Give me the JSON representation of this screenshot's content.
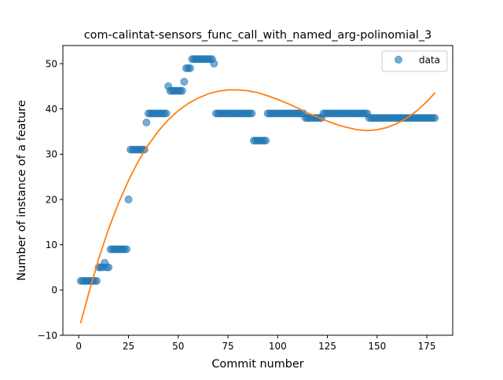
{
  "chart_data": {
    "type": "scatter",
    "title": "com-calintat-sensors_func_call_with_named_arg-polinomial_3",
    "xlabel": "Commit number",
    "ylabel": "Number of instance of a feature",
    "xlim": [
      -8,
      188
    ],
    "ylim": [
      -10,
      54
    ],
    "xticks": [
      0,
      25,
      50,
      75,
      100,
      125,
      150,
      175
    ],
    "yticks": [
      -10,
      0,
      10,
      20,
      30,
      40,
      50
    ],
    "grid": false,
    "legend": {
      "location": "upper right",
      "entries": [
        "data"
      ]
    },
    "colors": {
      "scatter": "#1f77b4",
      "fit": "#ff7f0e"
    },
    "series": [
      {
        "name": "data",
        "kind": "scatter",
        "x": [
          1,
          2,
          3,
          4,
          5,
          6,
          7,
          8,
          9,
          10,
          11,
          12,
          13,
          14,
          15,
          16,
          17,
          18,
          19,
          20,
          21,
          22,
          23,
          24,
          25,
          26,
          27,
          28,
          29,
          30,
          31,
          32,
          33,
          34,
          35,
          36,
          37,
          38,
          39,
          40,
          41,
          42,
          43,
          44,
          45,
          46,
          47,
          48,
          49,
          50,
          51,
          52,
          53,
          54,
          55,
          56,
          57,
          58,
          59,
          60,
          61,
          62,
          63,
          64,
          65,
          66,
          67,
          68,
          69,
          70,
          71,
          72,
          73,
          74,
          75,
          76,
          77,
          78,
          79,
          80,
          81,
          82,
          83,
          84,
          85,
          86,
          87,
          88,
          89,
          90,
          91,
          92,
          93,
          94,
          95,
          96,
          97,
          98,
          99,
          100,
          101,
          102,
          103,
          104,
          105,
          106,
          107,
          108,
          109,
          110,
          111,
          112,
          113,
          114,
          115,
          116,
          117,
          118,
          119,
          120,
          121,
          122,
          123,
          124,
          125,
          126,
          127,
          128,
          129,
          130,
          131,
          132,
          133,
          134,
          135,
          136,
          137,
          138,
          139,
          140,
          141,
          142,
          143,
          144,
          145,
          146,
          147,
          148,
          149,
          150,
          151,
          152,
          153,
          154,
          155,
          156,
          157,
          158,
          159,
          160,
          161,
          162,
          163,
          164,
          165,
          166,
          167,
          168,
          169,
          170,
          171,
          172,
          173,
          174,
          175,
          176,
          177,
          178,
          179
        ],
        "y": [
          2,
          2,
          2,
          2,
          2,
          2,
          2,
          2,
          2,
          5,
          5,
          5,
          6,
          5,
          5,
          9,
          9,
          9,
          9,
          9,
          9,
          9,
          9,
          9,
          20,
          31,
          31,
          31,
          31,
          31,
          31,
          31,
          31,
          37,
          39,
          39,
          39,
          39,
          39,
          39,
          39,
          39,
          39,
          39,
          45,
          44,
          44,
          44,
          44,
          44,
          44,
          44,
          46,
          49,
          49,
          49,
          51,
          51,
          51,
          51,
          51,
          51,
          51,
          51,
          51,
          51,
          51,
          50,
          39,
          39,
          39,
          39,
          39,
          39,
          39,
          39,
          39,
          39,
          39,
          39,
          39,
          39,
          39,
          39,
          39,
          39,
          39,
          33,
          33,
          33,
          33,
          33,
          33,
          33,
          39,
          39,
          39,
          39,
          39,
          39,
          39,
          39,
          39,
          39,
          39,
          39,
          39,
          39,
          39,
          39,
          39,
          39,
          39,
          38,
          38,
          38,
          38,
          38,
          38,
          38,
          38,
          38,
          39,
          39,
          39,
          39,
          39,
          39,
          39,
          39,
          39,
          39,
          39,
          39,
          39,
          39,
          39,
          39,
          39,
          39,
          39,
          39,
          39,
          39,
          39,
          38,
          38,
          38,
          38,
          38,
          38,
          38,
          38,
          38,
          38,
          38,
          38,
          38,
          38,
          38,
          38,
          38,
          38,
          38,
          38,
          38,
          38,
          38,
          38,
          38,
          38,
          38,
          38,
          38,
          38,
          38,
          38,
          38,
          38
        ]
      },
      {
        "name": "",
        "kind": "line",
        "x": [
          1,
          5,
          10,
          15,
          20,
          25,
          30,
          35,
          40,
          45,
          50,
          55,
          60,
          65,
          70,
          75,
          80,
          85,
          90,
          95,
          100,
          105,
          110,
          115,
          120,
          125,
          130,
          135,
          140,
          145,
          150,
          155,
          160,
          165,
          170,
          175,
          179
        ],
        "y": [
          -7.2,
          -0.7,
          6.9,
          13.5,
          19.2,
          24.2,
          28.5,
          32.1,
          35.1,
          37.6,
          39.6,
          41.2,
          42.4,
          43.3,
          43.9,
          44.2,
          44.2,
          44,
          43.6,
          42.9,
          42.1,
          41.2,
          40.2,
          39.1,
          38.2,
          37.3,
          36.5,
          35.9,
          35.4,
          35.2,
          35.4,
          35.9,
          36.8,
          38,
          39.6,
          41.6,
          43.5
        ]
      }
    ]
  }
}
